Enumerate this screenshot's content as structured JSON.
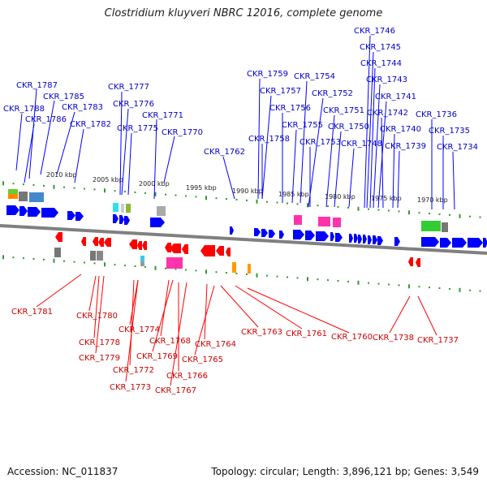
{
  "title": "Clostridium kluyveri NBRC 12016, complete genome",
  "footer": {
    "accession": "Accession: NC_011837",
    "stats": "Topology: circular; Length: 3,896,121 bp; Genes: 3,549"
  },
  "colors": {
    "forward": "#0000ff",
    "reverse": "#ff0000",
    "top_label": "#0000cc",
    "bottom_label": "#cc0000",
    "backbone": "#808080",
    "ruler": "#339933"
  },
  "ruler_labels": [
    "2010 kbp",
    "2005 kbp",
    "2000 kbp",
    "1995 kbp",
    "1990 kbp",
    "1985 kbp",
    "1980 kbp",
    "1975 kbp",
    "1970 kbp"
  ],
  "top_genes": [
    "CKR_1787",
    "CKR_1788",
    "CKR_1785",
    "CKR_1786",
    "CKR_1783",
    "CKR_1782",
    "CKR_1777",
    "CKR_1776",
    "CKR_1775",
    "CKR_1771",
    "CKR_1770",
    "CKR_1762",
    "CKR_1759",
    "CKR_1757",
    "CKR_1758",
    "CKR_1756",
    "CKR_1755",
    "CKR_1754",
    "CKR_1752",
    "CKR_1753",
    "CKR_1751",
    "CKR_1750",
    "CKR_1748",
    "CKR_1746",
    "CKR_1745",
    "CKR_1744",
    "CKR_1743",
    "CKR_1741",
    "CKR_1742",
    "CKR_1740",
    "CKR_1739",
    "CKR_1736",
    "CKR_1735",
    "CKR_1734"
  ],
  "bottom_genes": [
    "CKR_1781",
    "CKR_1780",
    "CKR_1778",
    "CKR_1779",
    "CKR_1774",
    "CKR_1772",
    "CKR_1773",
    "CKR_1768",
    "CKR_1769",
    "CKR_1766",
    "CKR_1767",
    "CKR_1764",
    "CKR_1765",
    "CKR_1763",
    "CKR_1761",
    "CKR_1760",
    "CKR_1738",
    "CKR_1737"
  ]
}
